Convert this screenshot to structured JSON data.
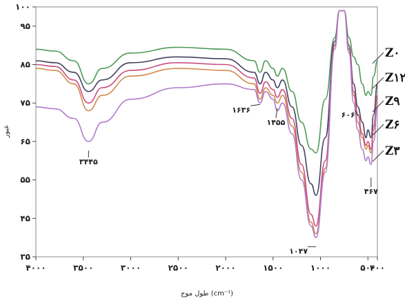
{
  "chart_data": {
    "type": "line",
    "title": "",
    "xlabel": "طول موج (cm⁻¹)",
    "ylabel": "عبور",
    "xlim": [
      4000,
      400
    ],
    "ylim": [
      35,
      100
    ],
    "x_ticks": [
      4000,
      3500,
      3000,
      2500,
      2000,
      1500,
      1000,
      500,
      400
    ],
    "x_tick_labels": [
      "۴۰۰۰",
      "۳۵۰۰",
      "۳۰۰۰",
      "۲۵۰۰",
      "۲۰۰۰",
      "۱۵۰۰",
      "۱۰۰۰",
      "۵۰۰",
      "۴۰۰"
    ],
    "y_ticks": [
      35,
      45,
      55,
      65,
      75,
      85,
      95,
      100
    ],
    "y_tick_labels": [
      "۳۵",
      "۴۵",
      "۵۵",
      "۶۵",
      "۷۵",
      "۸۵",
      "۹۵",
      "۱۰۰"
    ],
    "annotations": [
      {
        "text": "۳۴۴۵",
        "x": 3445,
        "y": 63
      },
      {
        "text": "۱۶۳۶",
        "x": 1636,
        "y": 75
      },
      {
        "text": "۱۴۵۵",
        "x": 1455,
        "y": 74
      },
      {
        "text": "۱۰۴۷",
        "x": 1047,
        "y": 38
      },
      {
        "text": "۶۰۶",
        "x": 606,
        "y": 72
      },
      {
        "text": "۴۶۷",
        "x": 467,
        "y": 56
      }
    ],
    "series": [
      {
        "name": "Z۰",
        "color": "#4e9a57",
        "x": [
          4000,
          3800,
          3600,
          3445,
          3300,
          3000,
          2500,
          2000,
          1700,
          1636,
          1580,
          1500,
          1455,
          1400,
          1300,
          1200,
          1100,
          1047,
          950,
          850,
          800,
          750,
          700,
          650,
          606,
          560,
          520,
          500,
          467,
          440,
          400
        ],
        "y": [
          89,
          88.5,
          86,
          80,
          84,
          88,
          89.5,
          89,
          86,
          83,
          86,
          84,
          82,
          84,
          78,
          70,
          63,
          62,
          76,
          92,
          99,
          99,
          92,
          87,
          85,
          80,
          77,
          78,
          77,
          82,
          86
        ]
      },
      {
        "name": "Z۱۲",
        "color": "#404060",
        "x": [
          4000,
          3800,
          3600,
          3445,
          3300,
          3000,
          2500,
          2000,
          1700,
          1636,
          1580,
          1500,
          1455,
          1400,
          1300,
          1200,
          1100,
          1047,
          950,
          850,
          800,
          750,
          700,
          650,
          606,
          560,
          520,
          500,
          467,
          440,
          400
        ],
        "y": [
          86,
          85.5,
          83,
          78,
          81,
          85.5,
          87,
          86.5,
          83,
          80,
          83,
          81,
          79,
          81,
          74,
          64,
          54,
          51,
          66,
          91,
          99,
          99,
          90,
          80,
          74,
          70,
          66,
          68,
          66,
          72,
          80
        ]
      },
      {
        "name": "Z۹",
        "color": "#d1894d",
        "x": [
          4000,
          3800,
          3600,
          3445,
          3300,
          3000,
          2500,
          2000,
          1700,
          1636,
          1580,
          1500,
          1455,
          1400,
          1300,
          1200,
          1100,
          1047,
          950,
          850,
          800,
          750,
          700,
          650,
          606,
          560,
          520,
          500,
          467,
          440,
          400
        ],
        "y": [
          84,
          83.5,
          80,
          73,
          77,
          82,
          84,
          83.5,
          80,
          76,
          79,
          77,
          75,
          77,
          69,
          57,
          44,
          41,
          58,
          90,
          99,
          99,
          89,
          77,
          70,
          66,
          63,
          64,
          62,
          68,
          76
        ]
      },
      {
        "name": "Z۶",
        "color": "#c94f80",
        "x": [
          4000,
          3800,
          3600,
          3445,
          3300,
          3000,
          2500,
          2000,
          1700,
          1636,
          1580,
          1500,
          1455,
          1400,
          1300,
          1200,
          1100,
          1047,
          950,
          850,
          800,
          750,
          700,
          650,
          606,
          560,
          520,
          500,
          467,
          440,
          400
        ],
        "y": [
          85,
          84.5,
          81,
          75,
          79,
          83.5,
          85.5,
          85,
          81.5,
          77.5,
          80.5,
          78.5,
          76.5,
          78.5,
          71,
          59,
          46,
          43,
          60,
          90,
          99,
          99,
          89,
          78,
          72,
          67,
          64,
          65,
          63,
          69,
          77
        ]
      },
      {
        "name": "Z۳",
        "color": "#b07ccc",
        "x": [
          4000,
          3800,
          3600,
          3445,
          3300,
          3000,
          2500,
          2000,
          1700,
          1636,
          1580,
          1500,
          1455,
          1400,
          1300,
          1200,
          1100,
          1047,
          950,
          850,
          800,
          750,
          700,
          650,
          606,
          560,
          520,
          500,
          467,
          440,
          400
        ],
        "y": [
          74,
          73.5,
          71,
          65,
          70,
          76,
          79,
          80,
          78.5,
          75,
          78,
          76,
          73,
          75,
          67,
          55,
          43,
          40,
          57,
          89,
          99,
          99,
          88,
          75,
          68,
          63,
          60,
          61,
          59,
          65,
          74
        ]
      }
    ],
    "grid": false,
    "legend": "right"
  }
}
